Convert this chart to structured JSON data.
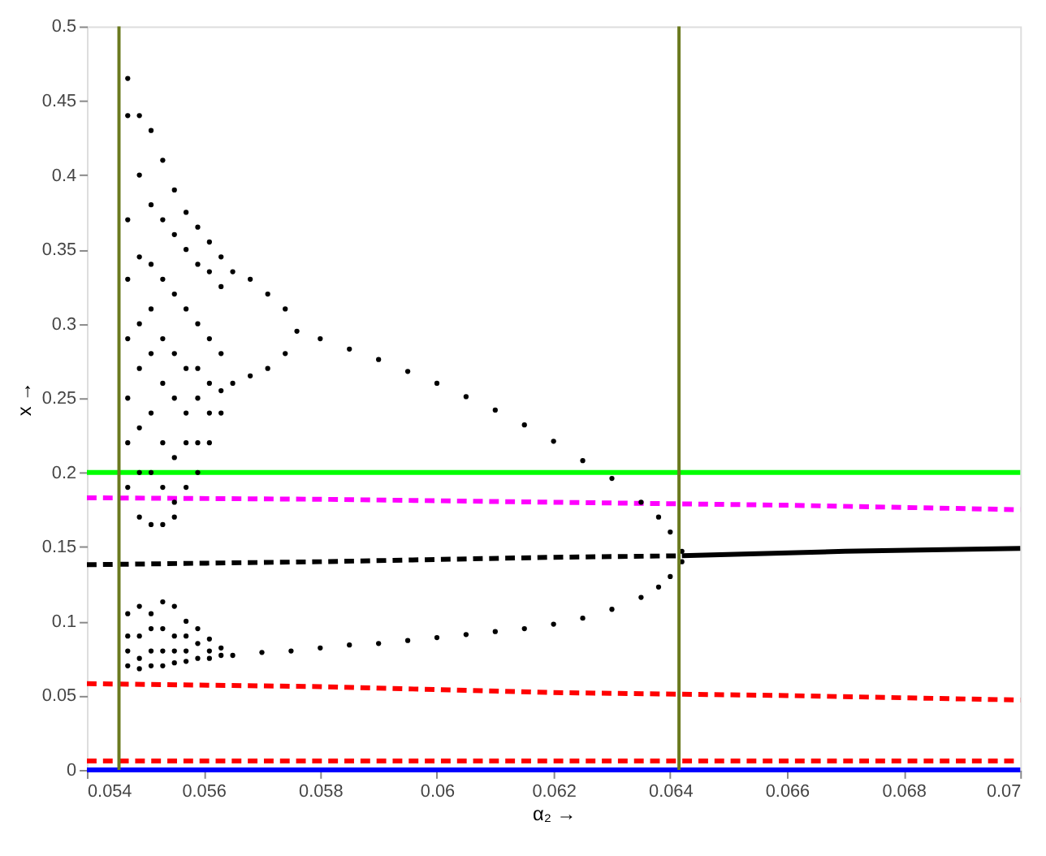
{
  "chart_data": {
    "type": "line",
    "xlabel": "α₂ →",
    "ylabel": "x →",
    "xlim": [
      0.054,
      0.07
    ],
    "ylim": [
      0,
      0.5
    ],
    "xticks": [
      0.054,
      0.056,
      0.058,
      0.06,
      0.062,
      0.064,
      0.066,
      0.068,
      0.07
    ],
    "yticks": [
      0,
      0.05,
      0.1,
      0.15,
      0.2,
      0.25,
      0.3,
      0.35,
      0.4,
      0.45,
      0.5
    ],
    "grid": false,
    "ref_lines": [
      {
        "axis": "x",
        "value": 0.05455,
        "color": "#6b7a1f"
      },
      {
        "axis": "x",
        "value": 0.06415,
        "color": "#6b7a1f"
      }
    ],
    "series": [
      {
        "type": "line",
        "color": "#00ff00",
        "line_style": "solid",
        "x": [
          0.054,
          0.07
        ],
        "values": [
          0.2,
          0.2
        ]
      },
      {
        "type": "line",
        "color": "#0000ff",
        "line_style": "solid",
        "x": [
          0.054,
          0.07
        ],
        "values": [
          0,
          0
        ]
      },
      {
        "type": "line",
        "color": "#ff0000",
        "line_style": "dashed",
        "x": [
          0.054,
          0.07
        ],
        "values": [
          0.006,
          0.006
        ]
      },
      {
        "type": "line",
        "color": "#ff0000",
        "line_style": "dashed",
        "x": [
          0.054,
          0.058,
          0.062,
          0.066,
          0.07
        ],
        "values": [
          0.058,
          0.056,
          0.052,
          0.05,
          0.047
        ]
      },
      {
        "type": "line",
        "color": "#ff00ff",
        "line_style": "dashed",
        "x": [
          0.054,
          0.058,
          0.062,
          0.066,
          0.07
        ],
        "values": [
          0.183,
          0.182,
          0.18,
          0.178,
          0.175
        ]
      },
      {
        "type": "line",
        "color": "#000000",
        "line_style": "dashed",
        "x": [
          0.054,
          0.058,
          0.062,
          0.0642
        ],
        "values": [
          0.138,
          0.14,
          0.143,
          0.144
        ]
      },
      {
        "type": "line",
        "color": "#000000",
        "line_style": "solid",
        "x": [
          0.0642,
          0.067,
          0.07
        ],
        "values": [
          0.144,
          0.147,
          0.149
        ]
      },
      {
        "type": "scatter",
        "color": "#000000",
        "marker": "circle",
        "x": [
          0.0576,
          0.058,
          0.0585,
          0.059,
          0.0595,
          0.06,
          0.0605,
          0.061,
          0.0615,
          0.062,
          0.0625,
          0.063,
          0.0635,
          0.0638,
          0.064,
          0.0642,
          0.0565,
          0.057,
          0.0575,
          0.058,
          0.0585,
          0.059,
          0.0595,
          0.06,
          0.0605,
          0.061,
          0.0615,
          0.062,
          0.0625,
          0.063,
          0.0635,
          0.0638,
          0.064,
          0.0642,
          0.0565,
          0.0568,
          0.0571,
          0.0574,
          0.0565,
          0.0568,
          0.0571,
          0.0574,
          0.0547,
          0.0547,
          0.0547,
          0.0547,
          0.0547,
          0.0547,
          0.0547,
          0.0547,
          0.0549,
          0.0549,
          0.0549,
          0.0549,
          0.0549,
          0.0549,
          0.0549,
          0.0549,
          0.0551,
          0.0551,
          0.0551,
          0.0551,
          0.0551,
          0.0551,
          0.0551,
          0.0551,
          0.0553,
          0.0553,
          0.0553,
          0.0553,
          0.0553,
          0.0553,
          0.0553,
          0.0553,
          0.0555,
          0.0555,
          0.0555,
          0.0555,
          0.0555,
          0.0555,
          0.0555,
          0.0555,
          0.0557,
          0.0557,
          0.0557,
          0.0557,
          0.0557,
          0.0557,
          0.0557,
          0.0559,
          0.0559,
          0.0559,
          0.0559,
          0.0559,
          0.0559,
          0.0559,
          0.0561,
          0.0561,
          0.0561,
          0.0561,
          0.0561,
          0.0561,
          0.0563,
          0.0563,
          0.0563,
          0.0563,
          0.0563,
          0.0547,
          0.0547,
          0.0547,
          0.0547,
          0.0549,
          0.0549,
          0.0549,
          0.0549,
          0.0551,
          0.0551,
          0.0551,
          0.0551,
          0.0553,
          0.0553,
          0.0553,
          0.0553,
          0.0555,
          0.0555,
          0.0555,
          0.0555,
          0.0557,
          0.0557,
          0.0557,
          0.0557,
          0.0559,
          0.0559,
          0.0559,
          0.0561,
          0.0561,
          0.0561,
          0.0563,
          0.0563
        ],
        "values": [
          0.295,
          0.29,
          0.283,
          0.276,
          0.268,
          0.26,
          0.251,
          0.242,
          0.232,
          0.221,
          0.208,
          0.196,
          0.18,
          0.17,
          0.16,
          0.147,
          0.077,
          0.079,
          0.08,
          0.082,
          0.084,
          0.085,
          0.087,
          0.089,
          0.091,
          0.093,
          0.095,
          0.098,
          0.102,
          0.108,
          0.116,
          0.123,
          0.13,
          0.14,
          0.335,
          0.33,
          0.32,
          0.31,
          0.26,
          0.265,
          0.27,
          0.28,
          0.465,
          0.44,
          0.37,
          0.33,
          0.29,
          0.25,
          0.22,
          0.19,
          0.44,
          0.4,
          0.345,
          0.3,
          0.27,
          0.23,
          0.2,
          0.17,
          0.43,
          0.38,
          0.34,
          0.31,
          0.28,
          0.24,
          0.2,
          0.165,
          0.41,
          0.37,
          0.33,
          0.29,
          0.26,
          0.22,
          0.19,
          0.165,
          0.39,
          0.36,
          0.32,
          0.28,
          0.25,
          0.21,
          0.18,
          0.17,
          0.375,
          0.35,
          0.31,
          0.27,
          0.24,
          0.22,
          0.19,
          0.365,
          0.34,
          0.3,
          0.27,
          0.25,
          0.22,
          0.2,
          0.355,
          0.335,
          0.29,
          0.26,
          0.24,
          0.22,
          0.345,
          0.325,
          0.28,
          0.255,
          0.24,
          0.105,
          0.09,
          0.08,
          0.07,
          0.11,
          0.09,
          0.075,
          0.068,
          0.105,
          0.095,
          0.08,
          0.07,
          0.113,
          0.095,
          0.08,
          0.07,
          0.11,
          0.09,
          0.08,
          0.072,
          0.1,
          0.09,
          0.08,
          0.073,
          0.095,
          0.085,
          0.075,
          0.088,
          0.08,
          0.075,
          0.082,
          0.077
        ]
      }
    ]
  }
}
